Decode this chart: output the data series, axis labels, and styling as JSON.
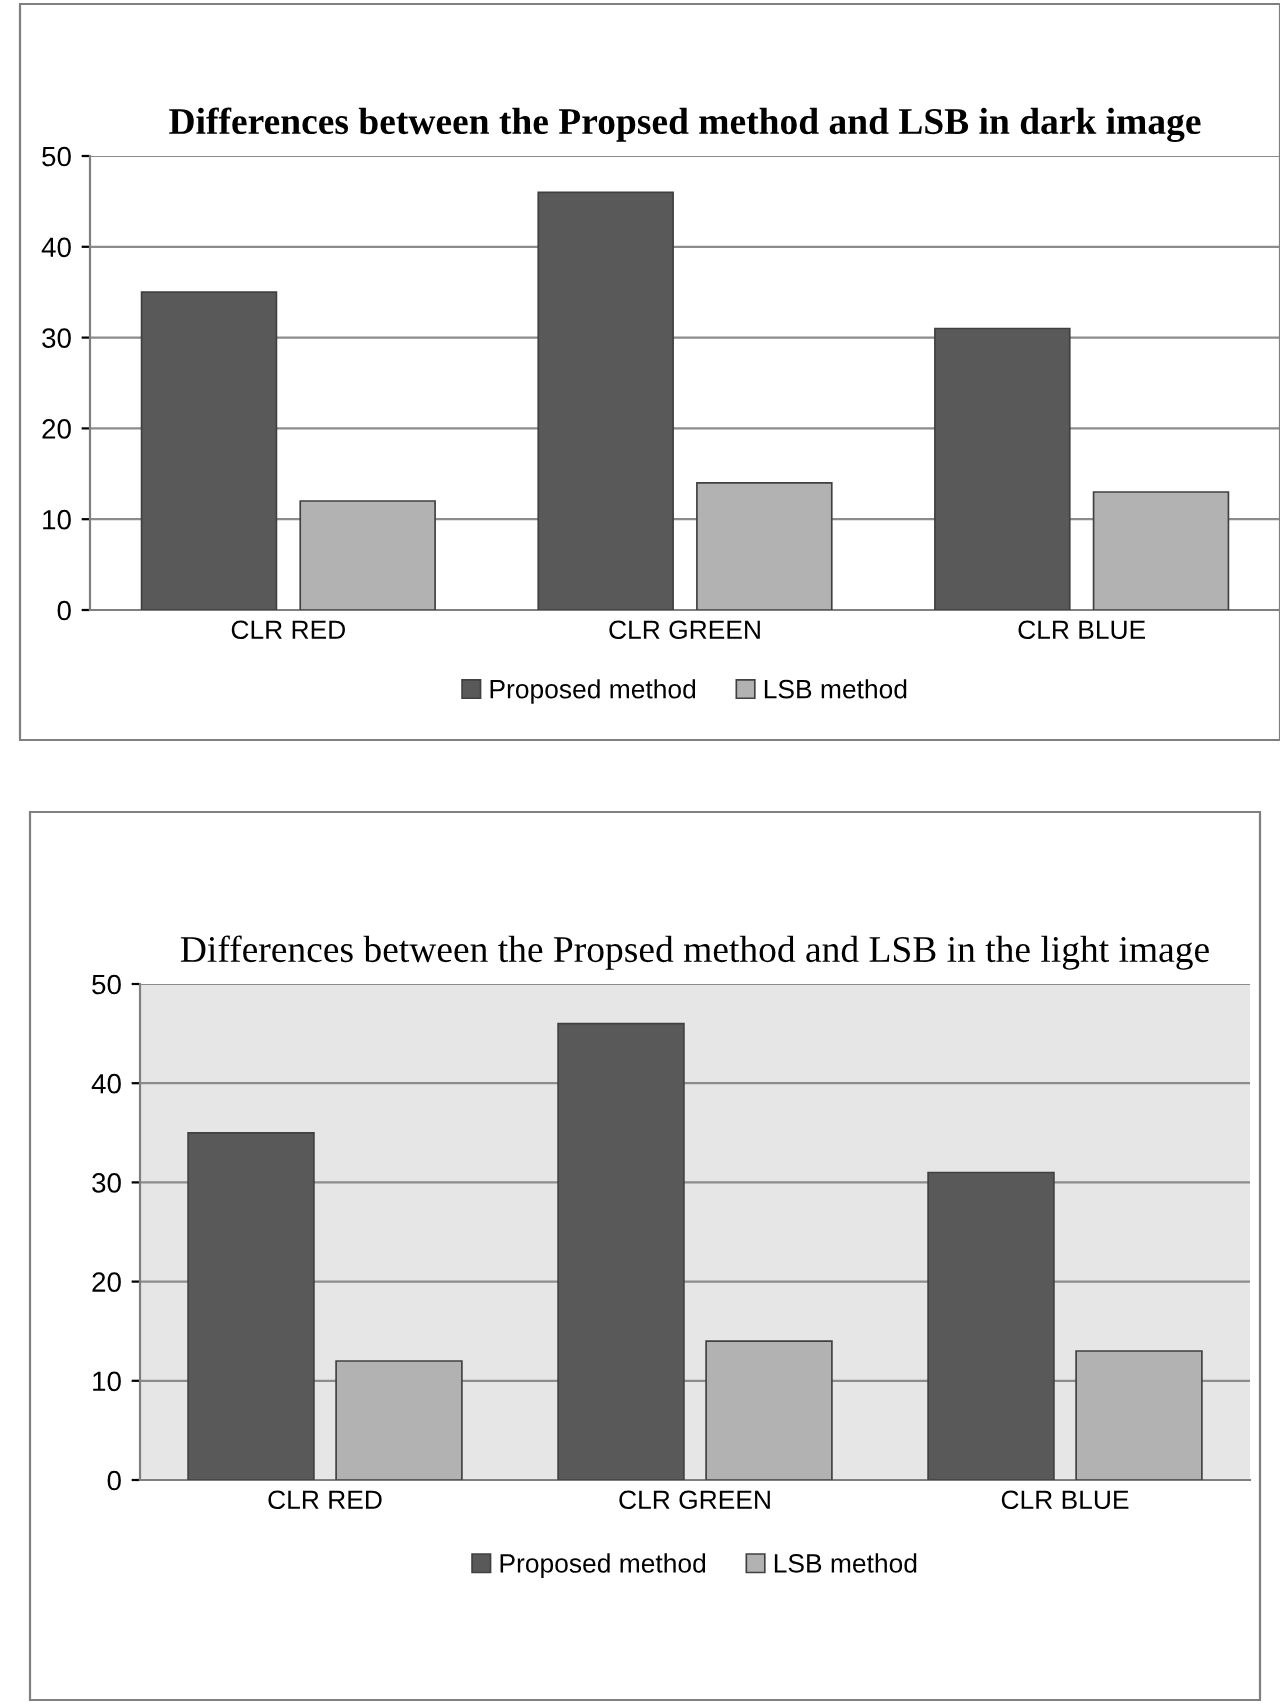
{
  "chart_data": [
    {
      "type": "bar",
      "title": "Differences between the Propsed method and LSB in dark image",
      "categories": [
        "CLR RED",
        "CLR GREEN",
        "CLR BLUE"
      ],
      "series": [
        {
          "name": "Proposed method",
          "color": "#595959",
          "values": [
            35,
            46,
            31
          ]
        },
        {
          "name": "LSB method",
          "color": "#b2b2b2",
          "values": [
            12,
            14,
            13
          ]
        }
      ],
      "ylim": [
        0,
        50
      ],
      "yticks": [
        0,
        10,
        20,
        30,
        40,
        50
      ],
      "grid": "y",
      "legend": "bottom"
    },
    {
      "type": "bar",
      "title": "Differences between the Propsed method and LSB in the light image",
      "categories": [
        "CLR RED",
        "CLR GREEN",
        "CLR BLUE"
      ],
      "series": [
        {
          "name": "Proposed method",
          "color": "#595959",
          "values": [
            35,
            46,
            31
          ]
        },
        {
          "name": "LSB method",
          "color": "#b2b2b2",
          "values": [
            12,
            14,
            13
          ]
        }
      ],
      "ylim": [
        0,
        50
      ],
      "yticks": [
        0,
        10,
        20,
        30,
        40,
        50
      ],
      "grid": "y",
      "legend": "bottom"
    }
  ]
}
